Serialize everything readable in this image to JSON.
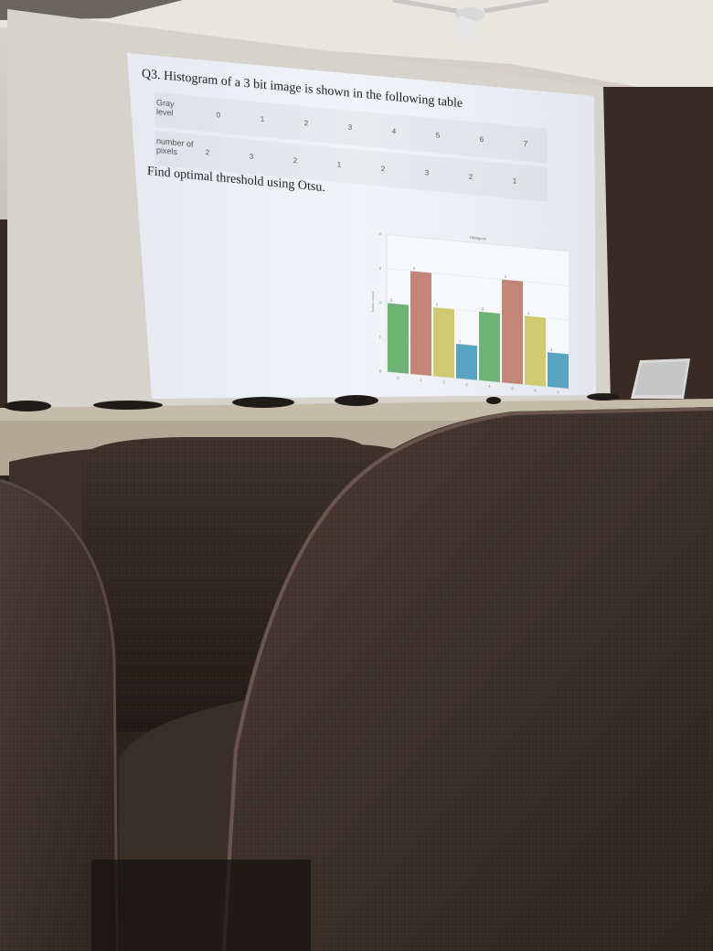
{
  "slide": {
    "title": "Q3. Histogram of a 3 bit image is shown in the following table",
    "question": "Find optimal threshold using Otsu."
  },
  "table": {
    "row1_label": "Gray level",
    "row2_label": "number of pixels",
    "gray_levels": [
      "0",
      "1",
      "2",
      "3",
      "4",
      "5",
      "6",
      "7"
    ],
    "pixel_counts": [
      "2",
      "3",
      "2",
      "1",
      "2",
      "3",
      "2",
      "1"
    ]
  },
  "chart_data": {
    "type": "bar",
    "title": "Histogram",
    "xlabel": "",
    "ylabel": "Number of pixels",
    "categories": [
      "0",
      "1",
      "2",
      "3",
      "4",
      "5",
      "6",
      "7"
    ],
    "values": [
      2,
      3,
      2,
      1,
      2,
      3,
      2,
      1
    ],
    "bar_labels": [
      "2",
      "3",
      "2",
      "1",
      "2",
      "3",
      "2",
      "1"
    ],
    "ylim": [
      0,
      4
    ],
    "yticks": [
      "0",
      "1",
      "2",
      "3",
      "4"
    ],
    "grid": true,
    "colors": [
      "#6fb276",
      "#c38676",
      "#cfc96f",
      "#5aa4c1",
      "#6fb276",
      "#c38676",
      "#cfc96f",
      "#5aa4c1"
    ]
  },
  "colors": {
    "screen": "#eef1f6",
    "wall": "#cfcac1",
    "ceiling": "#ebe8e3",
    "desk": "#bdb2a2",
    "seat": "#3a2d28"
  }
}
